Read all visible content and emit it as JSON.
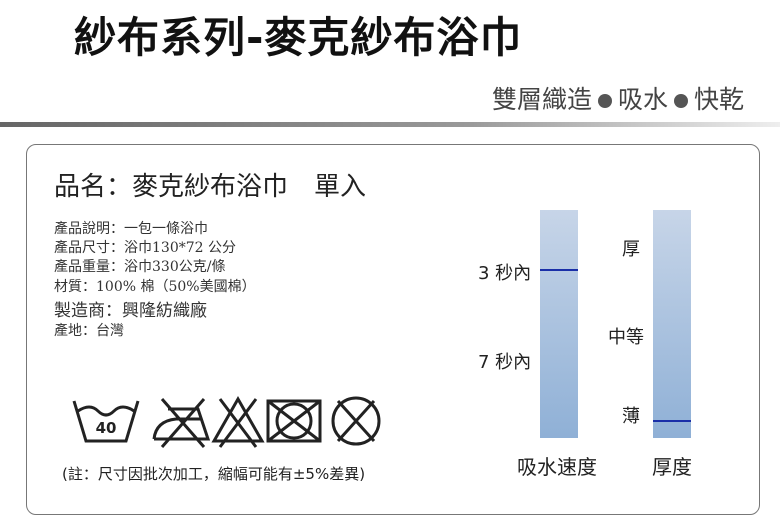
{
  "header": {
    "title": "紗布系列-麥克紗布浴巾",
    "tagline": [
      "雙層織造",
      "吸水",
      "快乾"
    ]
  },
  "product": {
    "name": "品名：麥克紗布浴巾　單入",
    "specs": [
      "產品說明：一包一條浴巾",
      "產品尺寸：浴巾130*72  公分",
      "產品重量：浴巾330公克/條",
      "材質：100% 棉（50%美國棉）",
      "製造商：興隆紡織廠",
      "產地：台灣"
    ],
    "wash_temp": "40",
    "care_icons": [
      "wash-40-icon",
      "no-iron-icon",
      "no-bleach-icon",
      "no-tumble-dry-icon",
      "no-dry-clean-icon"
    ],
    "note": "(註：尺寸因批次加工，縮幅可能有±5%差異)"
  },
  "scales": {
    "absorb": {
      "caption": "吸水速度",
      "labels": [
        "3 秒內",
        "7 秒內"
      ],
      "marked": "3 秒內"
    },
    "thickness": {
      "caption": "厚度",
      "labels": [
        "厚",
        "中等",
        "薄"
      ],
      "marked": "薄"
    },
    "mark_color": "#1a2fa8"
  }
}
